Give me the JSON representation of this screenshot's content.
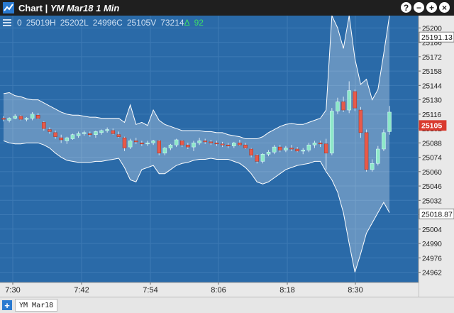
{
  "window": {
    "title": "Chart",
    "instrument": "YM Mar18 1 Min",
    "controls": [
      "?",
      "−",
      "+",
      "×"
    ]
  },
  "info": {
    "o": "0",
    "h": "25019H",
    "l": "25202L",
    "c": "24996C",
    "v": "25105V",
    "vol": "73214",
    "change_symbol": "Δ",
    "change": "92"
  },
  "colors": {
    "background": "#2a6aa8",
    "up": "#8ee8c8",
    "down": "#e85a4a",
    "band": "#ffffff"
  },
  "price_labels": [
    {
      "text": "25191.13",
      "price": 25191.13,
      "style": "white"
    },
    {
      "text": "25105",
      "price": 25105,
      "style": "red"
    },
    {
      "text": "25018.87",
      "price": 25018.87,
      "style": "white"
    }
  ],
  "bottom": {
    "add_label": "+",
    "series_label": "YM Mar18"
  },
  "chart_data": {
    "type": "candlestick",
    "x_ticks": [
      "7:30",
      "7:42",
      "7:54",
      "8:06",
      "8:18",
      "8:30"
    ],
    "y_ticks": [
      25200,
      25186,
      25172,
      25158,
      25144,
      25130,
      25116,
      25102,
      25088,
      25074,
      25060,
      25046,
      25032,
      25018,
      25004,
      24990,
      24976,
      24962
    ],
    "y_range": [
      24952,
      25212
    ],
    "candles": [
      [
        25112,
        25114,
        25109,
        25111
      ],
      [
        25110,
        25113,
        25108,
        25112
      ],
      [
        25112,
        25116,
        25111,
        25114
      ],
      [
        25114,
        25115,
        25110,
        25111
      ],
      [
        25111,
        25113,
        25109,
        25112
      ],
      [
        25112,
        25118,
        25110,
        25116
      ],
      [
        25115,
        25117,
        25111,
        25112
      ],
      [
        25108,
        25109,
        25100,
        25102
      ],
      [
        25101,
        25103,
        25097,
        25099
      ],
      [
        25098,
        25100,
        25092,
        25094
      ],
      [
        25093,
        25096,
        25088,
        25091
      ],
      [
        25090,
        25094,
        25087,
        25093
      ],
      [
        25092,
        25097,
        25091,
        25096
      ],
      [
        25095,
        25099,
        25093,
        25097
      ],
      [
        25097,
        25100,
        25095,
        25098
      ],
      [
        25097,
        25099,
        25094,
        25096
      ],
      [
        25096,
        25100,
        25093,
        25099
      ],
      [
        25098,
        25101,
        25096,
        25100
      ],
      [
        25100,
        25103,
        25098,
        25101
      ],
      [
        25100,
        25102,
        25096,
        25097
      ],
      [
        25096,
        25099,
        25093,
        25094
      ],
      [
        25093,
        25094,
        25080,
        25083
      ],
      [
        25084,
        25092,
        25082,
        25090
      ],
      [
        25090,
        25093,
        25087,
        25089
      ],
      [
        25088,
        25090,
        25085,
        25087
      ],
      [
        25087,
        25090,
        25085,
        25088
      ],
      [
        25088,
        25091,
        25086,
        25090
      ],
      [
        25090,
        25091,
        25076,
        25078
      ],
      [
        25078,
        25084,
        25076,
        25083
      ],
      [
        25083,
        25087,
        25081,
        25086
      ],
      [
        25086,
        25092,
        25084,
        25091
      ],
      [
        25090,
        25091,
        25084,
        25086
      ],
      [
        25086,
        25088,
        25082,
        25084
      ],
      [
        25084,
        25090,
        25080,
        25088
      ],
      [
        25088,
        25093,
        25086,
        25090
      ],
      [
        25090,
        25092,
        25087,
        25089
      ],
      [
        25089,
        25091,
        25086,
        25088
      ],
      [
        25088,
        25090,
        25085,
        25087
      ],
      [
        25087,
        25089,
        25084,
        25086
      ],
      [
        25086,
        25088,
        25083,
        25085
      ],
      [
        25085,
        25089,
        25083,
        25088
      ],
      [
        25088,
        25091,
        25085,
        25086
      ],
      [
        25086,
        25088,
        25082,
        25083
      ],
      [
        25082,
        25083,
        25074,
        25076
      ],
      [
        25076,
        25077,
        25068,
        25070
      ],
      [
        25070,
        25078,
        25068,
        25077
      ],
      [
        25077,
        25081,
        25075,
        25079
      ],
      [
        25079,
        25086,
        25077,
        25084
      ],
      [
        25084,
        25086,
        25079,
        25081
      ],
      [
        25081,
        25085,
        25079,
        25083
      ],
      [
        25083,
        25086,
        25080,
        25082
      ],
      [
        25082,
        25084,
        25079,
        25080
      ],
      [
        25080,
        25083,
        25077,
        25081
      ],
      [
        25081,
        25088,
        25079,
        25086
      ],
      [
        25086,
        25090,
        25083,
        25088
      ],
      [
        25088,
        25090,
        25084,
        25087
      ],
      [
        25087,
        25092,
        25062,
        25078
      ],
      [
        25078,
        25122,
        25076,
        25119
      ],
      [
        25119,
        25132,
        25116,
        25128
      ],
      [
        25128,
        25133,
        25118,
        25120
      ],
      [
        25120,
        25148,
        25117,
        25139
      ],
      [
        25138,
        25140,
        25119,
        25122
      ],
      [
        25120,
        25123,
        25093,
        25098
      ],
      [
        25098,
        25101,
        25060,
        25062
      ],
      [
        25062,
        25072,
        25060,
        25068
      ],
      [
        25068,
        25085,
        25066,
        25082
      ],
      [
        25082,
        25101,
        25080,
        25098
      ],
      [
        25099,
        25124,
        25096,
        25118
      ]
    ],
    "band_upper": [
      25136,
      25137,
      25134,
      25133,
      25131,
      25130,
      25130,
      25127,
      25124,
      25121,
      25118,
      25116,
      25115,
      25115,
      25114,
      25113,
      25113,
      25112,
      25112,
      25112,
      25112,
      25108,
      25125,
      25106,
      25108,
      25105,
      25120,
      25110,
      25106,
      25104,
      25102,
      25100,
      25100,
      25100,
      25100,
      25099,
      25099,
      25098,
      25098,
      25096,
      25095,
      25094,
      25092,
      25092,
      25092,
      25094,
      25098,
      25101,
      25104,
      25106,
      25107,
      25106,
      25106,
      25108,
      25110,
      25112,
      25120,
      25212,
      25200,
      25180,
      25212,
      25170,
      25145,
      25150,
      25130,
      25140,
      25175,
      25212
    ],
    "band_lower": [
      25090,
      25088,
      25087,
      25087,
      25088,
      25088,
      25088,
      25086,
      25083,
      25078,
      25074,
      25071,
      25070,
      25069,
      25069,
      25069,
      25070,
      25070,
      25071,
      25072,
      25073,
      25064,
      25052,
      25050,
      25062,
      25064,
      25066,
      25058,
      25058,
      25062,
      25066,
      25068,
      25069,
      25071,
      25072,
      25072,
      25073,
      25072,
      25072,
      25072,
      25070,
      25068,
      25064,
      25058,
      25050,
      25048,
      25050,
      25054,
      25058,
      25062,
      25064,
      25066,
      25067,
      25068,
      25070,
      25070,
      25060,
      25052,
      25040,
      25020,
      24990,
      24962,
      24980,
      25000,
      25010,
      25020,
      25030,
      25020
    ]
  }
}
